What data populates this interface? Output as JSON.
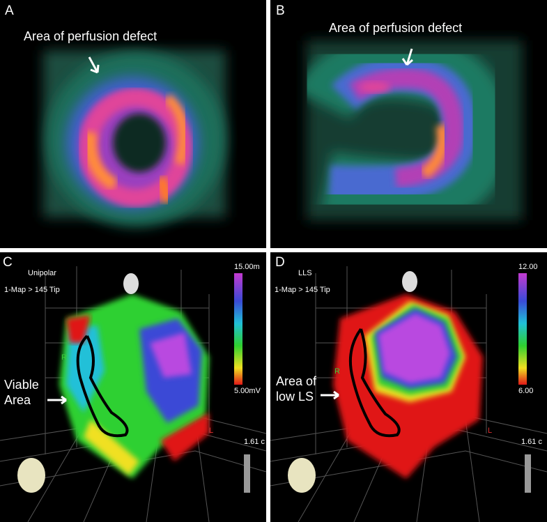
{
  "panels": {
    "a": {
      "letter": "A",
      "caption": "Area of perfusion defect"
    },
    "b": {
      "letter": "B",
      "caption": "Area of perfusion defect"
    },
    "c": {
      "letter": "C",
      "mode": "Unipolar",
      "map": "1-Map > 145 Tip",
      "scale_max": "15.00m",
      "scale_min": "5.00mV",
      "annotation_line1": "Viable",
      "annotation_line2": "Area",
      "axis_r": "R",
      "axis_l": "L",
      "distance": "1.61 c"
    },
    "d": {
      "letter": "D",
      "mode": "LLS",
      "map": "1-Map > 145 Tip",
      "scale_max": "12.00",
      "scale_min": "6.00",
      "annotation_line1": "Area of",
      "annotation_line2": "low LS",
      "axis_r": "R",
      "axis_l": "L",
      "distance": "1.61 c"
    }
  },
  "colors": {
    "background": "#000000",
    "divider": "#ffffff",
    "text": "#ffffff"
  }
}
